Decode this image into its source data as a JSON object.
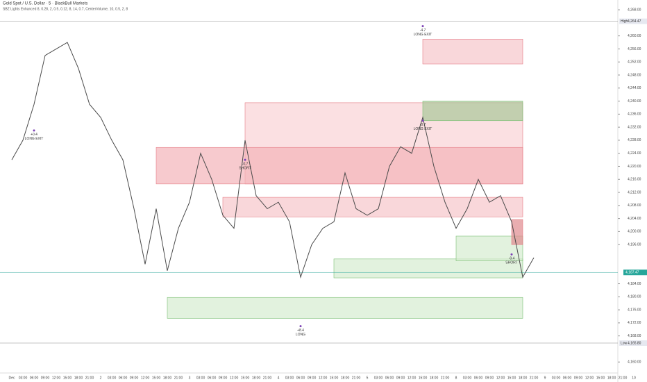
{
  "chart_data": {
    "type": "line",
    "title": "Gold Spot / U.S. Dollar · 5 · BlackBull Markets",
    "subtitle": "SBZ Lights Enhanced 8, 0.28, 2, 0.5, 0.12, 8, 14, 0.7, CenterVolume, 10, 0.5, 2, 8",
    "categories": [
      "Dec",
      "03:00",
      "06:00",
      "09:00",
      "12:00",
      "15:00",
      "18:00",
      "21:00",
      "2",
      "03:00",
      "06:00",
      "09:00",
      "12:00",
      "15:00",
      "18:00",
      "21:00",
      "3",
      "03:00",
      "06:00",
      "09:00",
      "12:00",
      "15:00",
      "18:00",
      "21:00",
      "4",
      "03:00",
      "06:00",
      "09:00",
      "12:00",
      "15:00",
      "18:00",
      "21:00",
      "5",
      "03:00",
      "06:00",
      "09:00",
      "12:00",
      "15:00",
      "18:00",
      "21:00",
      "8",
      "03:00",
      "06:00",
      "09:00",
      "12:00",
      "15:00",
      "18:00",
      "21:00",
      "9",
      "03:00",
      "06:00",
      "09:00",
      "12:00",
      "15:00",
      "18:00",
      "21:00",
      "10"
    ],
    "series": [
      {
        "name": "XAUUSD",
        "color": "#4a4a4a",
        "values": [
          4222,
          4228,
          4239,
          4254,
          4256,
          4258,
          4250,
          4239,
          4235,
          4228,
          4222,
          4207,
          4190,
          4207,
          4188,
          4201,
          4209,
          4224,
          4216,
          4205,
          4201,
          4228,
          4211,
          4207,
          4209,
          4203,
          4186,
          4196,
          4201,
          4203,
          4218,
          4207,
          4205,
          4207,
          4220,
          4226,
          4224,
          4235,
          4220,
          4209,
          4201,
          4207,
          4216,
          4209,
          4211,
          4203,
          4186,
          4192,
          null,
          null,
          null,
          null,
          null,
          null,
          null,
          null,
          null
        ]
      }
    ],
    "ylim": [
      4156,
      4271
    ],
    "yticks": [
      {
        "value": 4268,
        "label": "4,268.00"
      },
      {
        "value": 4260,
        "label": "4,260.00"
      },
      {
        "value": 4256,
        "label": "4,256.00"
      },
      {
        "value": 4252,
        "label": "4,252.00"
      },
      {
        "value": 4248,
        "label": "4,248.00"
      },
      {
        "value": 4244,
        "label": "4,244.00"
      },
      {
        "value": 4240,
        "label": "4,240.00"
      },
      {
        "value": 4236,
        "label": "4,236.00"
      },
      {
        "value": 4232,
        "label": "4,232.00"
      },
      {
        "value": 4228,
        "label": "4,228.00"
      },
      {
        "value": 4224,
        "label": "4,224.00"
      },
      {
        "value": 4220,
        "label": "4,220.00"
      },
      {
        "value": 4216,
        "label": "4,216.00"
      },
      {
        "value": 4212,
        "label": "4,212.00"
      },
      {
        "value": 4208,
        "label": "4,208.00"
      },
      {
        "value": 4204,
        "label": "4,204.00"
      },
      {
        "value": 4200,
        "label": "4,200.00"
      },
      {
        "value": 4196,
        "label": "4,196.00"
      },
      {
        "value": 4184,
        "label": "4,184.00"
      },
      {
        "value": 4180,
        "label": "4,180.00"
      },
      {
        "value": 4176,
        "label": "4,176.00"
      },
      {
        "value": 4172,
        "label": "4,172.00"
      },
      {
        "value": 4168,
        "label": "4,168.00"
      },
      {
        "value": 4160,
        "label": "4,160.00"
      }
    ],
    "zones": [
      {
        "kind": "short",
        "color": "#f7c6cb",
        "start": 37,
        "end": 46,
        "top": 4259,
        "bottom": 4251.4
      },
      {
        "kind": "short",
        "color": "#f9d3d6",
        "start": 21,
        "end": 46,
        "top": 4239.5,
        "bottom": 4214.6
      },
      {
        "kind": "short",
        "color": "#f4b3b9",
        "start": 13,
        "end": 46,
        "top": 4225.8,
        "bottom": 4214.6
      },
      {
        "kind": "short",
        "color": "#f7c6cb",
        "start": 19,
        "end": 46,
        "top": 4210.5,
        "bottom": 4204.5
      },
      {
        "kind": "long",
        "color": "#a9c79a",
        "start": 37,
        "end": 46,
        "top": 4240,
        "bottom": 4234
      },
      {
        "kind": "long",
        "color": "#d5ecd0",
        "start": 29,
        "end": 46,
        "top": 4191.6,
        "bottom": 4185.8
      },
      {
        "kind": "long",
        "color": "#d5ecd0",
        "start": 14,
        "end": 46,
        "top": 4179.8,
        "bottom": 4173.4
      },
      {
        "kind": "long",
        "color": "#d5ecd0",
        "start": 40,
        "end": 46,
        "top": 4198.6,
        "bottom": 4191
      },
      {
        "kind": "short",
        "color": "#e08a8f",
        "start": 45,
        "end": 46,
        "top": 4203.7,
        "bottom": 4196
      }
    ],
    "annotations": [
      {
        "text": "LONG",
        "sub": "+8.4",
        "index": 26,
        "price": 4171
      },
      {
        "text": "LONG EXIT",
        "sub": "-4.7",
        "index": 37,
        "price": 4263
      },
      {
        "text": "LONG EXIT",
        "sub": "-0.7",
        "index": 37,
        "price": 4234
      },
      {
        "text": "SHORT",
        "sub": "-9.4",
        "index": 45,
        "price": 4193
      },
      {
        "text": "SHORT",
        "sub": "-0.7",
        "index": 21,
        "price": 4222
      },
      {
        "text": "LONG EXIT",
        "sub": "+0.4",
        "index": 2,
        "price": 4231
      }
    ],
    "high": {
      "label": "High",
      "value": 4264.47,
      "value_label": "4,264.47"
    },
    "low": {
      "label": "Low",
      "value": 4165.8,
      "value_label": "4,165.80"
    },
    "last": {
      "value": 4187.47,
      "value_label": "4,187.47"
    }
  }
}
